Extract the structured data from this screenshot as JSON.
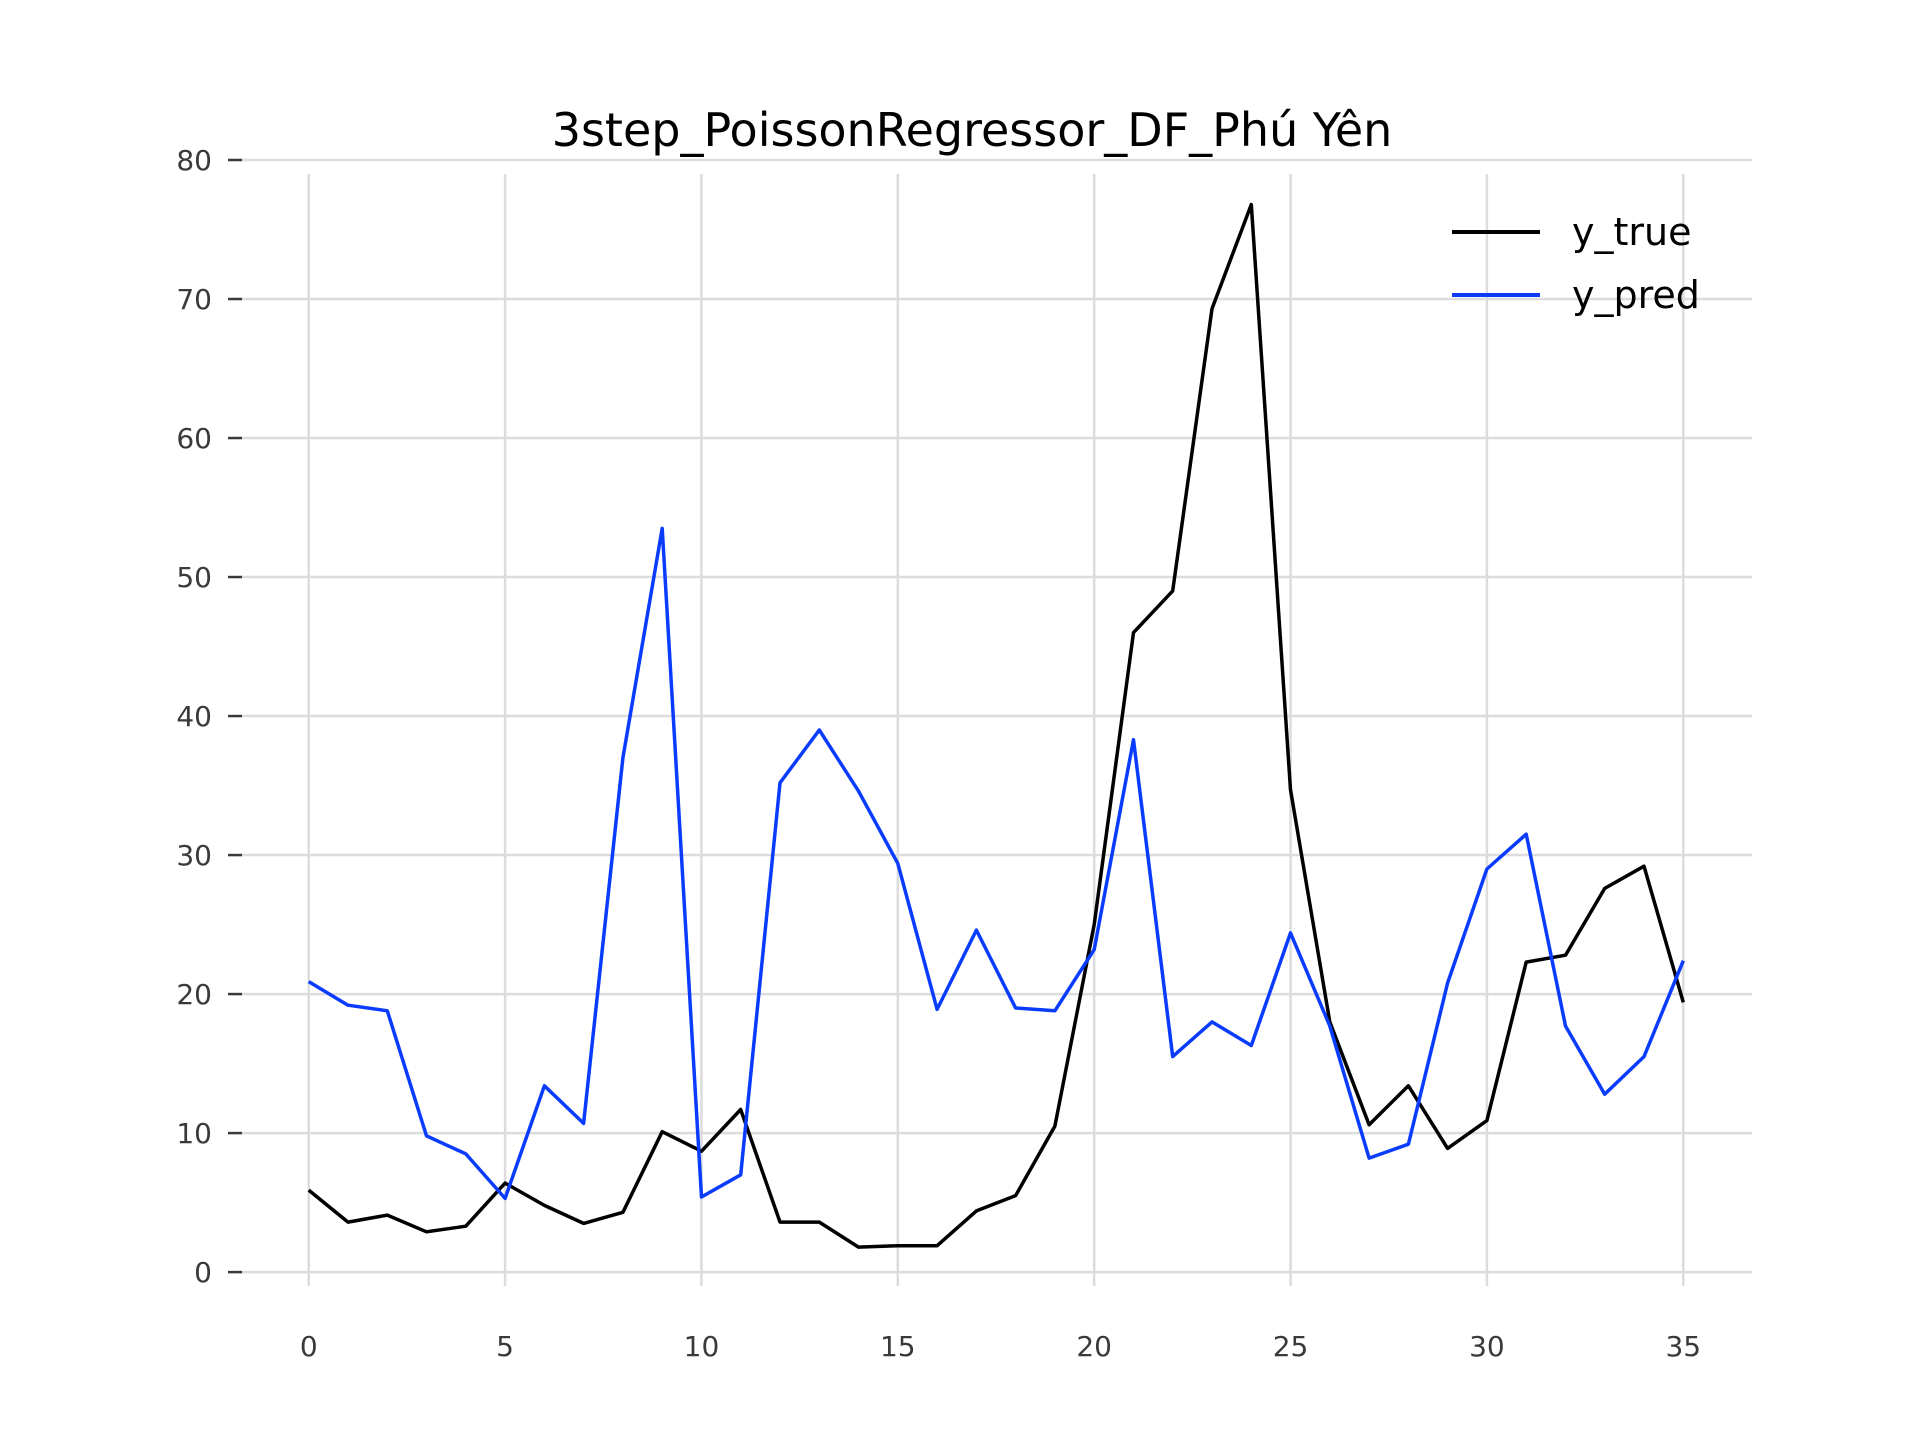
{
  "chart_data": {
    "type": "line",
    "title": "3step_PoissonRegressor_DF_Phú Yên",
    "xlabel": "",
    "ylabel": "",
    "xlim": [
      -1.75,
      36.75
    ],
    "ylim": [
      -1,
      80
    ],
    "x_ticks": [
      0,
      5,
      10,
      15,
      20,
      25,
      30,
      35
    ],
    "y_ticks": [
      0,
      10,
      20,
      30,
      40,
      50,
      60,
      70,
      80
    ],
    "grid": true,
    "legend_position": "top-right",
    "x": [
      0,
      1,
      2,
      3,
      4,
      5,
      6,
      7,
      8,
      9,
      10,
      11,
      12,
      13,
      14,
      15,
      16,
      17,
      18,
      19,
      20,
      21,
      22,
      23,
      24,
      25,
      26,
      27,
      28,
      29,
      30,
      31,
      32,
      33,
      34,
      35
    ],
    "series": [
      {
        "name": "y_true",
        "color": "#000000",
        "values": [
          5.9,
          3.6,
          4.1,
          2.9,
          3.3,
          6.4,
          4.8,
          3.5,
          4.3,
          10.1,
          8.7,
          11.7,
          3.6,
          3.6,
          1.8,
          1.9,
          1.9,
          4.4,
          5.5,
          10.5,
          25.0,
          46.0,
          49.0,
          69.3,
          76.8,
          34.7,
          18.0,
          10.6,
          13.4,
          8.9,
          10.9,
          22.3,
          22.8,
          27.6,
          29.2,
          19.4
        ]
      },
      {
        "name": "y_pred",
        "color": "#0a3cff",
        "values": [
          20.9,
          19.2,
          18.8,
          9.8,
          8.5,
          5.3,
          13.4,
          10.7,
          37.0,
          53.5,
          5.4,
          7.0,
          35.2,
          39.0,
          34.6,
          29.4,
          18.9,
          24.6,
          19.0,
          18.8,
          23.2,
          38.3,
          15.5,
          18.0,
          16.3,
          24.4,
          17.7,
          8.2,
          9.2,
          20.8,
          29.0,
          31.5,
          17.7,
          12.8,
          15.5,
          22.4
        ]
      }
    ]
  }
}
